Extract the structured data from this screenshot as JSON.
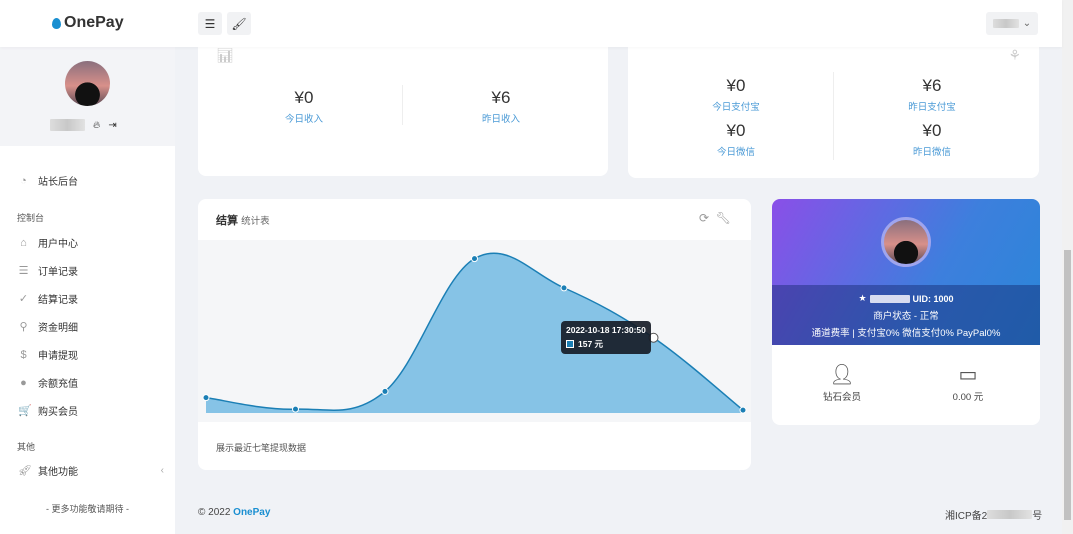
{
  "header": {
    "brand": "OnePay",
    "menu_icon": "menu-icon",
    "theme_icon": "brush-icon"
  },
  "sidebar": {
    "user_icons": [
      "fire-icon",
      "logout-icon"
    ],
    "admin": "站长后台",
    "section1": "控制台",
    "items": [
      {
        "label": "用户中心",
        "icon": "⌂"
      },
      {
        "label": "订单记录",
        "icon": "☰"
      },
      {
        "label": "结算记录",
        "icon": "✓"
      },
      {
        "label": "资金明细",
        "icon": "⚲"
      },
      {
        "label": "申请提现",
        "icon": "$"
      },
      {
        "label": "余额充值",
        "icon": "●"
      },
      {
        "label": "购买会员",
        "icon": "🛒"
      }
    ],
    "section2": "其他",
    "other": "其他功能",
    "more": "- 更多功能敬请期待 -"
  },
  "income": {
    "today_value": "¥0",
    "today_label": "今日收入",
    "yesterday_value": "¥6",
    "yesterday_label": "昨日收入"
  },
  "channels": {
    "items": [
      {
        "value": "¥0",
        "label": "今日支付宝"
      },
      {
        "value": "¥6",
        "label": "昨日支付宝"
      },
      {
        "value": "¥0",
        "label": "今日微信"
      },
      {
        "value": "¥0",
        "label": "昨日微信"
      }
    ]
  },
  "chart_card": {
    "title": "结算",
    "subtitle": "统计表",
    "footer": "展示最近七笔提现数据"
  },
  "chart_data": {
    "type": "area",
    "x": [
      1,
      2,
      3,
      4,
      5,
      6,
      7
    ],
    "values": [
      32,
      8,
      45,
      322,
      261,
      157,
      6
    ],
    "unit": "元",
    "color": "#86c3e6",
    "line_color": "#1b7fb5",
    "tooltip": {
      "index": 5,
      "date": "2022-10-18 17:30:50",
      "text": "157 元"
    },
    "grid": false
  },
  "profile": {
    "uid": "UID: 1000",
    "status": "商户状态 - 正常",
    "rates": "通道费率 |  支付宝0%  微信支付0%  PayPal0%",
    "member": "钻石会员",
    "balance": "0.00 元"
  },
  "footer": {
    "copyright": "© 2022 ",
    "brand": "OnePay",
    "icp_prefix": "湘ICP备2",
    "icp_suffix": "号"
  },
  "colors": {
    "accent": "#1a8fd1",
    "label_blue": "#4a9ad6"
  }
}
